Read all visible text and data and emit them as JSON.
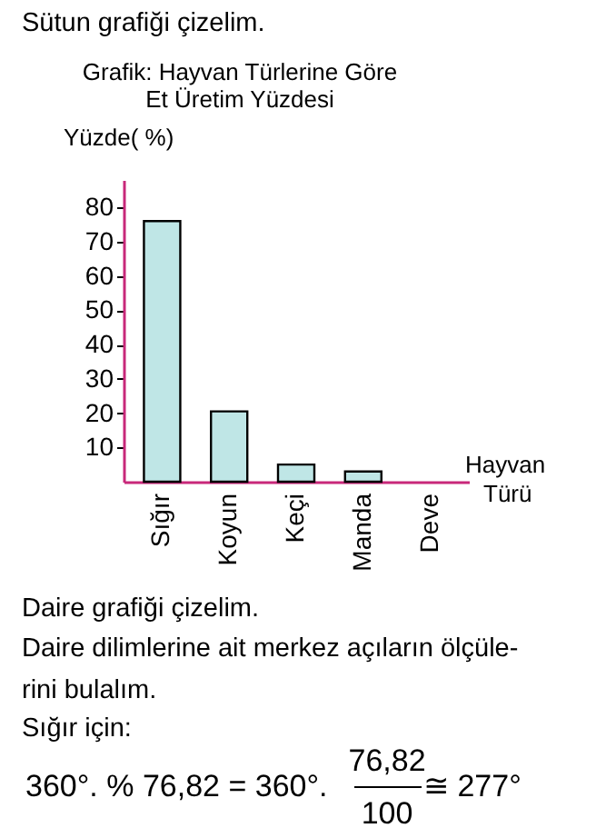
{
  "chart_data": {
    "type": "bar",
    "title": "Grafik: Hayvan Türlerine Göre\nEt Üretim Yüzdesi",
    "ylabel": "Yüzde( %)",
    "xlabel": "Hayvan\nTürü",
    "categories": [
      "Sığır",
      "Koyun",
      "Keçi",
      "Manda",
      "Deve"
    ],
    "values": [
      76,
      20.5,
      5,
      3,
      null
    ],
    "color": "#bfe6e6",
    "ylim": [
      0,
      88
    ],
    "yticks": [
      10,
      20,
      30,
      40,
      50,
      60,
      70,
      80
    ],
    "grid": false,
    "annotations": [
      "Sütun grafiği çizelim.",
      "Daire grafiği çizelim.",
      "Daire dilimlerine ait merkez açıların ölçüle-",
      "rini bulalım.",
      "Sığır için:",
      "360°. % 76,82 = 360°.",
      "76,82",
      "100",
      "≅ 277°"
    ]
  }
}
